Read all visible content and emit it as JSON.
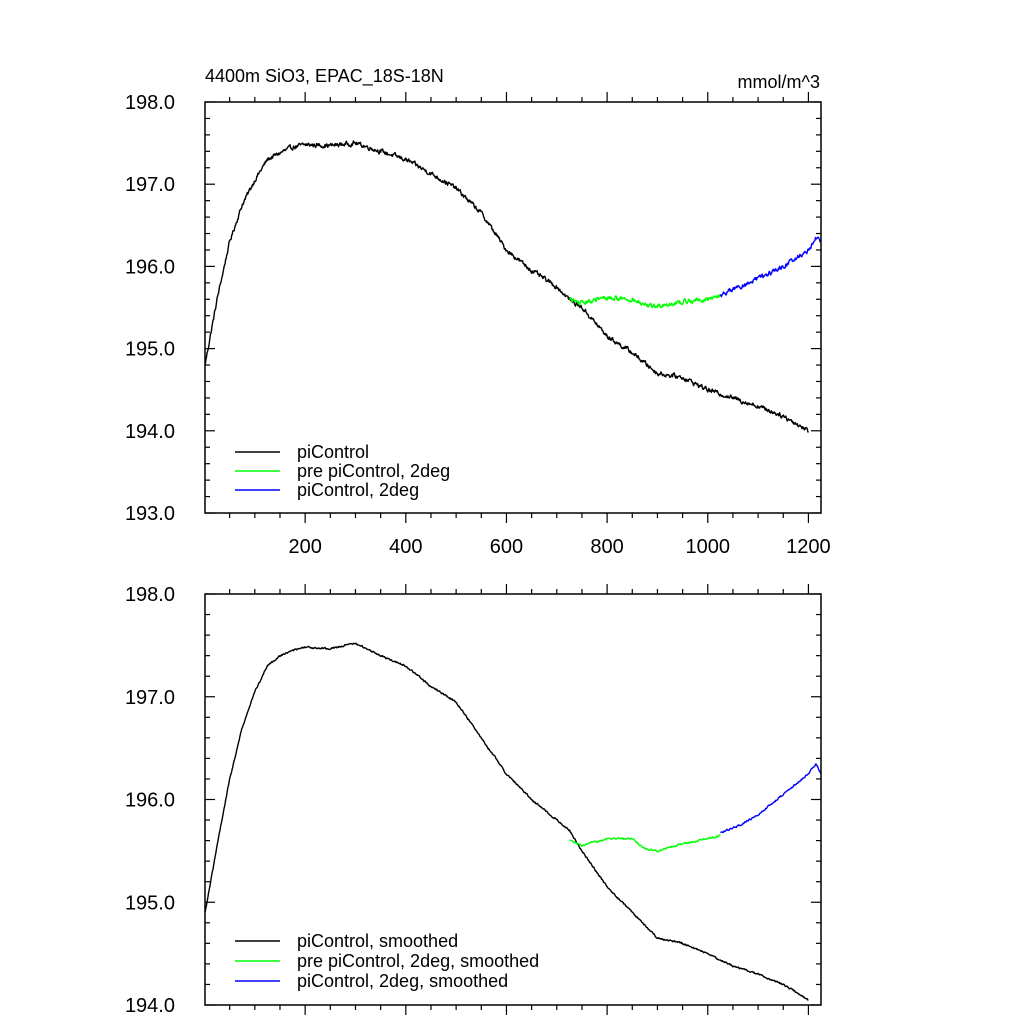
{
  "chart_data": [
    {
      "type": "line",
      "title": "4400m SiO3, EPAC_18S-18N",
      "units_label": "mmol/m^3",
      "xlim": [
        1,
        1225
      ],
      "ylim": [
        193.0,
        198.0
      ],
      "xticks": [
        200,
        400,
        600,
        800,
        1000,
        1200
      ],
      "xtick_labels": [
        "200",
        "400",
        "600",
        "800",
        "1000",
        "1200"
      ],
      "yticks": [
        193.0,
        194.0,
        195.0,
        196.0,
        197.0,
        198.0
      ],
      "ytick_labels": [
        "193.0",
        "194.0",
        "195.0",
        "196.0",
        "197.0",
        "198.0"
      ],
      "grid": false,
      "legend_position": "bottom-left",
      "noise": 0.05,
      "series": [
        {
          "name": "piControl",
          "color": "#000000",
          "x": [
            1,
            25,
            50,
            75,
            100,
            125,
            150,
            175,
            200,
            250,
            300,
            350,
            400,
            450,
            500,
            550,
            600,
            650,
            700,
            725,
            750,
            800,
            850,
            900,
            950,
            1000,
            1050,
            1100,
            1150,
            1200
          ],
          "y": [
            194.8,
            195.6,
            196.3,
            196.75,
            197.05,
            197.3,
            197.38,
            197.45,
            197.48,
            197.47,
            197.5,
            197.4,
            197.3,
            197.13,
            196.95,
            196.65,
            196.2,
            195.95,
            195.75,
            195.6,
            195.5,
            195.15,
            194.95,
            194.7,
            194.65,
            194.5,
            194.4,
            194.3,
            194.18,
            194.0
          ]
        },
        {
          "name": "pre piControl, 2deg",
          "color": "#00ff00",
          "x": [
            725,
            750,
            800,
            850,
            875,
            900,
            950,
            1000,
            1025
          ],
          "y": [
            195.6,
            195.55,
            195.62,
            195.6,
            195.52,
            195.52,
            195.57,
            195.6,
            195.65
          ]
        },
        {
          "name": "piControl, 2deg",
          "color": "#0000ff",
          "x": [
            1025,
            1050,
            1075,
            1100,
            1125,
            1150,
            1175,
            1200,
            1215,
            1225
          ],
          "y": [
            195.65,
            195.72,
            195.78,
            195.85,
            195.92,
            196.0,
            196.1,
            196.2,
            196.35,
            196.3
          ]
        }
      ]
    },
    {
      "type": "line",
      "xlim": [
        1,
        1225
      ],
      "ylim": [
        194.0,
        198.0
      ],
      "xticks": [
        200,
        400,
        600,
        800,
        1000,
        1200
      ],
      "yticks": [
        194.0,
        195.0,
        196.0,
        197.0,
        198.0
      ],
      "ytick_labels": [
        "194.0",
        "195.0",
        "196.0",
        "197.0",
        "198.0"
      ],
      "grid": false,
      "legend_position": "bottom-left",
      "noise": 0.015,
      "series": [
        {
          "name": "piControl, smoothed",
          "color": "#000000",
          "x": [
            1,
            25,
            50,
            75,
            100,
            125,
            150,
            175,
            200,
            250,
            300,
            350,
            400,
            450,
            500,
            550,
            600,
            650,
            700,
            725,
            750,
            800,
            850,
            900,
            950,
            1000,
            1050,
            1100,
            1150,
            1200
          ],
          "y": [
            194.9,
            195.55,
            196.2,
            196.7,
            197.05,
            197.3,
            197.4,
            197.45,
            197.48,
            197.47,
            197.52,
            197.4,
            197.3,
            197.1,
            196.95,
            196.6,
            196.25,
            196.0,
            195.8,
            195.7,
            195.5,
            195.15,
            194.9,
            194.65,
            194.6,
            194.5,
            194.38,
            194.3,
            194.2,
            194.05
          ]
        },
        {
          "name": "pre piControl, 2deg, smoothed",
          "color": "#00ff00",
          "x": [
            725,
            750,
            800,
            850,
            875,
            900,
            950,
            1000,
            1025
          ],
          "y": [
            195.6,
            195.55,
            195.62,
            195.62,
            195.52,
            195.5,
            195.57,
            195.62,
            195.65
          ]
        },
        {
          "name": "piControl, 2deg, smoothed",
          "color": "#0000ff",
          "x": [
            1025,
            1050,
            1075,
            1100,
            1125,
            1150,
            1175,
            1200,
            1215,
            1225
          ],
          "y": [
            195.68,
            195.72,
            195.78,
            195.85,
            195.95,
            196.05,
            196.15,
            196.25,
            196.35,
            196.25
          ]
        }
      ]
    }
  ]
}
